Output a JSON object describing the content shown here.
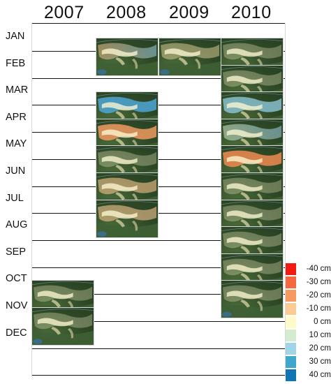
{
  "years": [
    "2007",
    "2008",
    "2009",
    "2010"
  ],
  "months": [
    "JAN",
    "FEB",
    "MAR",
    "APR",
    "MAY",
    "JUN",
    "JUL",
    "AUG",
    "SEP",
    "OCT",
    "NOV",
    "DEC"
  ],
  "tiles": [
    {
      "year": "2008",
      "month": "JAN",
      "tint": "#f2b886",
      "tint_east": "#9ccde3",
      "tint_level": 0.55
    },
    {
      "year": "2008",
      "month": "MAR",
      "tint": "#4ea6d6",
      "tint_east": "#4ea6d6",
      "tint_level": 0.85
    },
    {
      "year": "2008",
      "month": "APR",
      "tint": "#f09a60",
      "tint_east": "#f09a60",
      "tint_level": 0.85
    },
    {
      "year": "2008",
      "month": "MAY",
      "tint": "#fff6cc",
      "tint_east": "#fff6cc",
      "tint_level": 0.3
    },
    {
      "year": "2008",
      "month": "JUN",
      "tint": "#f5c28d",
      "tint_east": "#f5c28d",
      "tint_level": 0.6
    },
    {
      "year": "2008",
      "month": "JUL",
      "tint": "#f4c391",
      "tint_east": "#f4c391",
      "tint_level": 0.6
    },
    {
      "year": "2009",
      "month": "JAN",
      "tint": "#f8e1a8",
      "tint_east": "#f8e1a8",
      "tint_level": 0.45
    },
    {
      "year": "2010",
      "month": "JAN",
      "tint": "#fff6cc",
      "tint_east": "#fff6cc",
      "tint_level": 0.3
    },
    {
      "year": "2010",
      "month": "FEB",
      "tint": "#fff6cc",
      "tint_east": "#fff6cc",
      "tint_level": 0.3
    },
    {
      "year": "2010",
      "month": "MAR",
      "tint": "#93cfe4",
      "tint_east": "#93cfe4",
      "tint_level": 0.75
    },
    {
      "year": "2010",
      "month": "APR",
      "tint": "#d6ebd0",
      "tint_east": "#9ccde3",
      "tint_level": 0.55
    },
    {
      "year": "2010",
      "month": "MAY",
      "tint": "#f08a50",
      "tint_east": "#f08a50",
      "tint_level": 0.85
    },
    {
      "year": "2010",
      "month": "JUN",
      "tint": "#fff6cc",
      "tint_east": "#fff6cc",
      "tint_level": 0.3
    },
    {
      "year": "2010",
      "month": "JUL",
      "tint": "#fff6cc",
      "tint_east": "#fff6cc",
      "tint_level": 0.3
    },
    {
      "year": "2010",
      "month": "AUG",
      "tint": "#fff6cc",
      "tint_east": "#fff6cc",
      "tint_level": 0.3
    },
    {
      "year": "2010",
      "month": "SEP",
      "tint": "#fff6cc",
      "tint_east": "#fff6cc",
      "tint_level": 0.3
    },
    {
      "year": "2010",
      "month": "OCT",
      "tint": "#fff6cc",
      "tint_east": "#fff6cc",
      "tint_level": 0.3
    },
    {
      "year": "2007",
      "month": "OCT",
      "tint": "#fff6cc",
      "tint_east": "#fff6cc",
      "tint_level": 0.3
    },
    {
      "year": "2007",
      "month": "NOV",
      "tint": "#fff6cc",
      "tint_east": "#fff6cc",
      "tint_level": 0.3
    }
  ],
  "legend": {
    "items": [
      {
        "label": "-40 cm",
        "color": "#f21b14"
      },
      {
        "label": "-30 cm",
        "color": "#f4673f"
      },
      {
        "label": "-20 cm",
        "color": "#f79a62"
      },
      {
        "label": "-10 cm",
        "color": "#fbcb95"
      },
      {
        "label": "0 cm",
        "color": "#fffbc9"
      },
      {
        "label": "10 cm",
        "color": "#d3ecd0"
      },
      {
        "label": "20 cm",
        "color": "#9fd5e4"
      },
      {
        "label": "30 cm",
        "color": "#3fa6cc"
      },
      {
        "label": "40 cm",
        "color": "#1175b5"
      }
    ]
  }
}
